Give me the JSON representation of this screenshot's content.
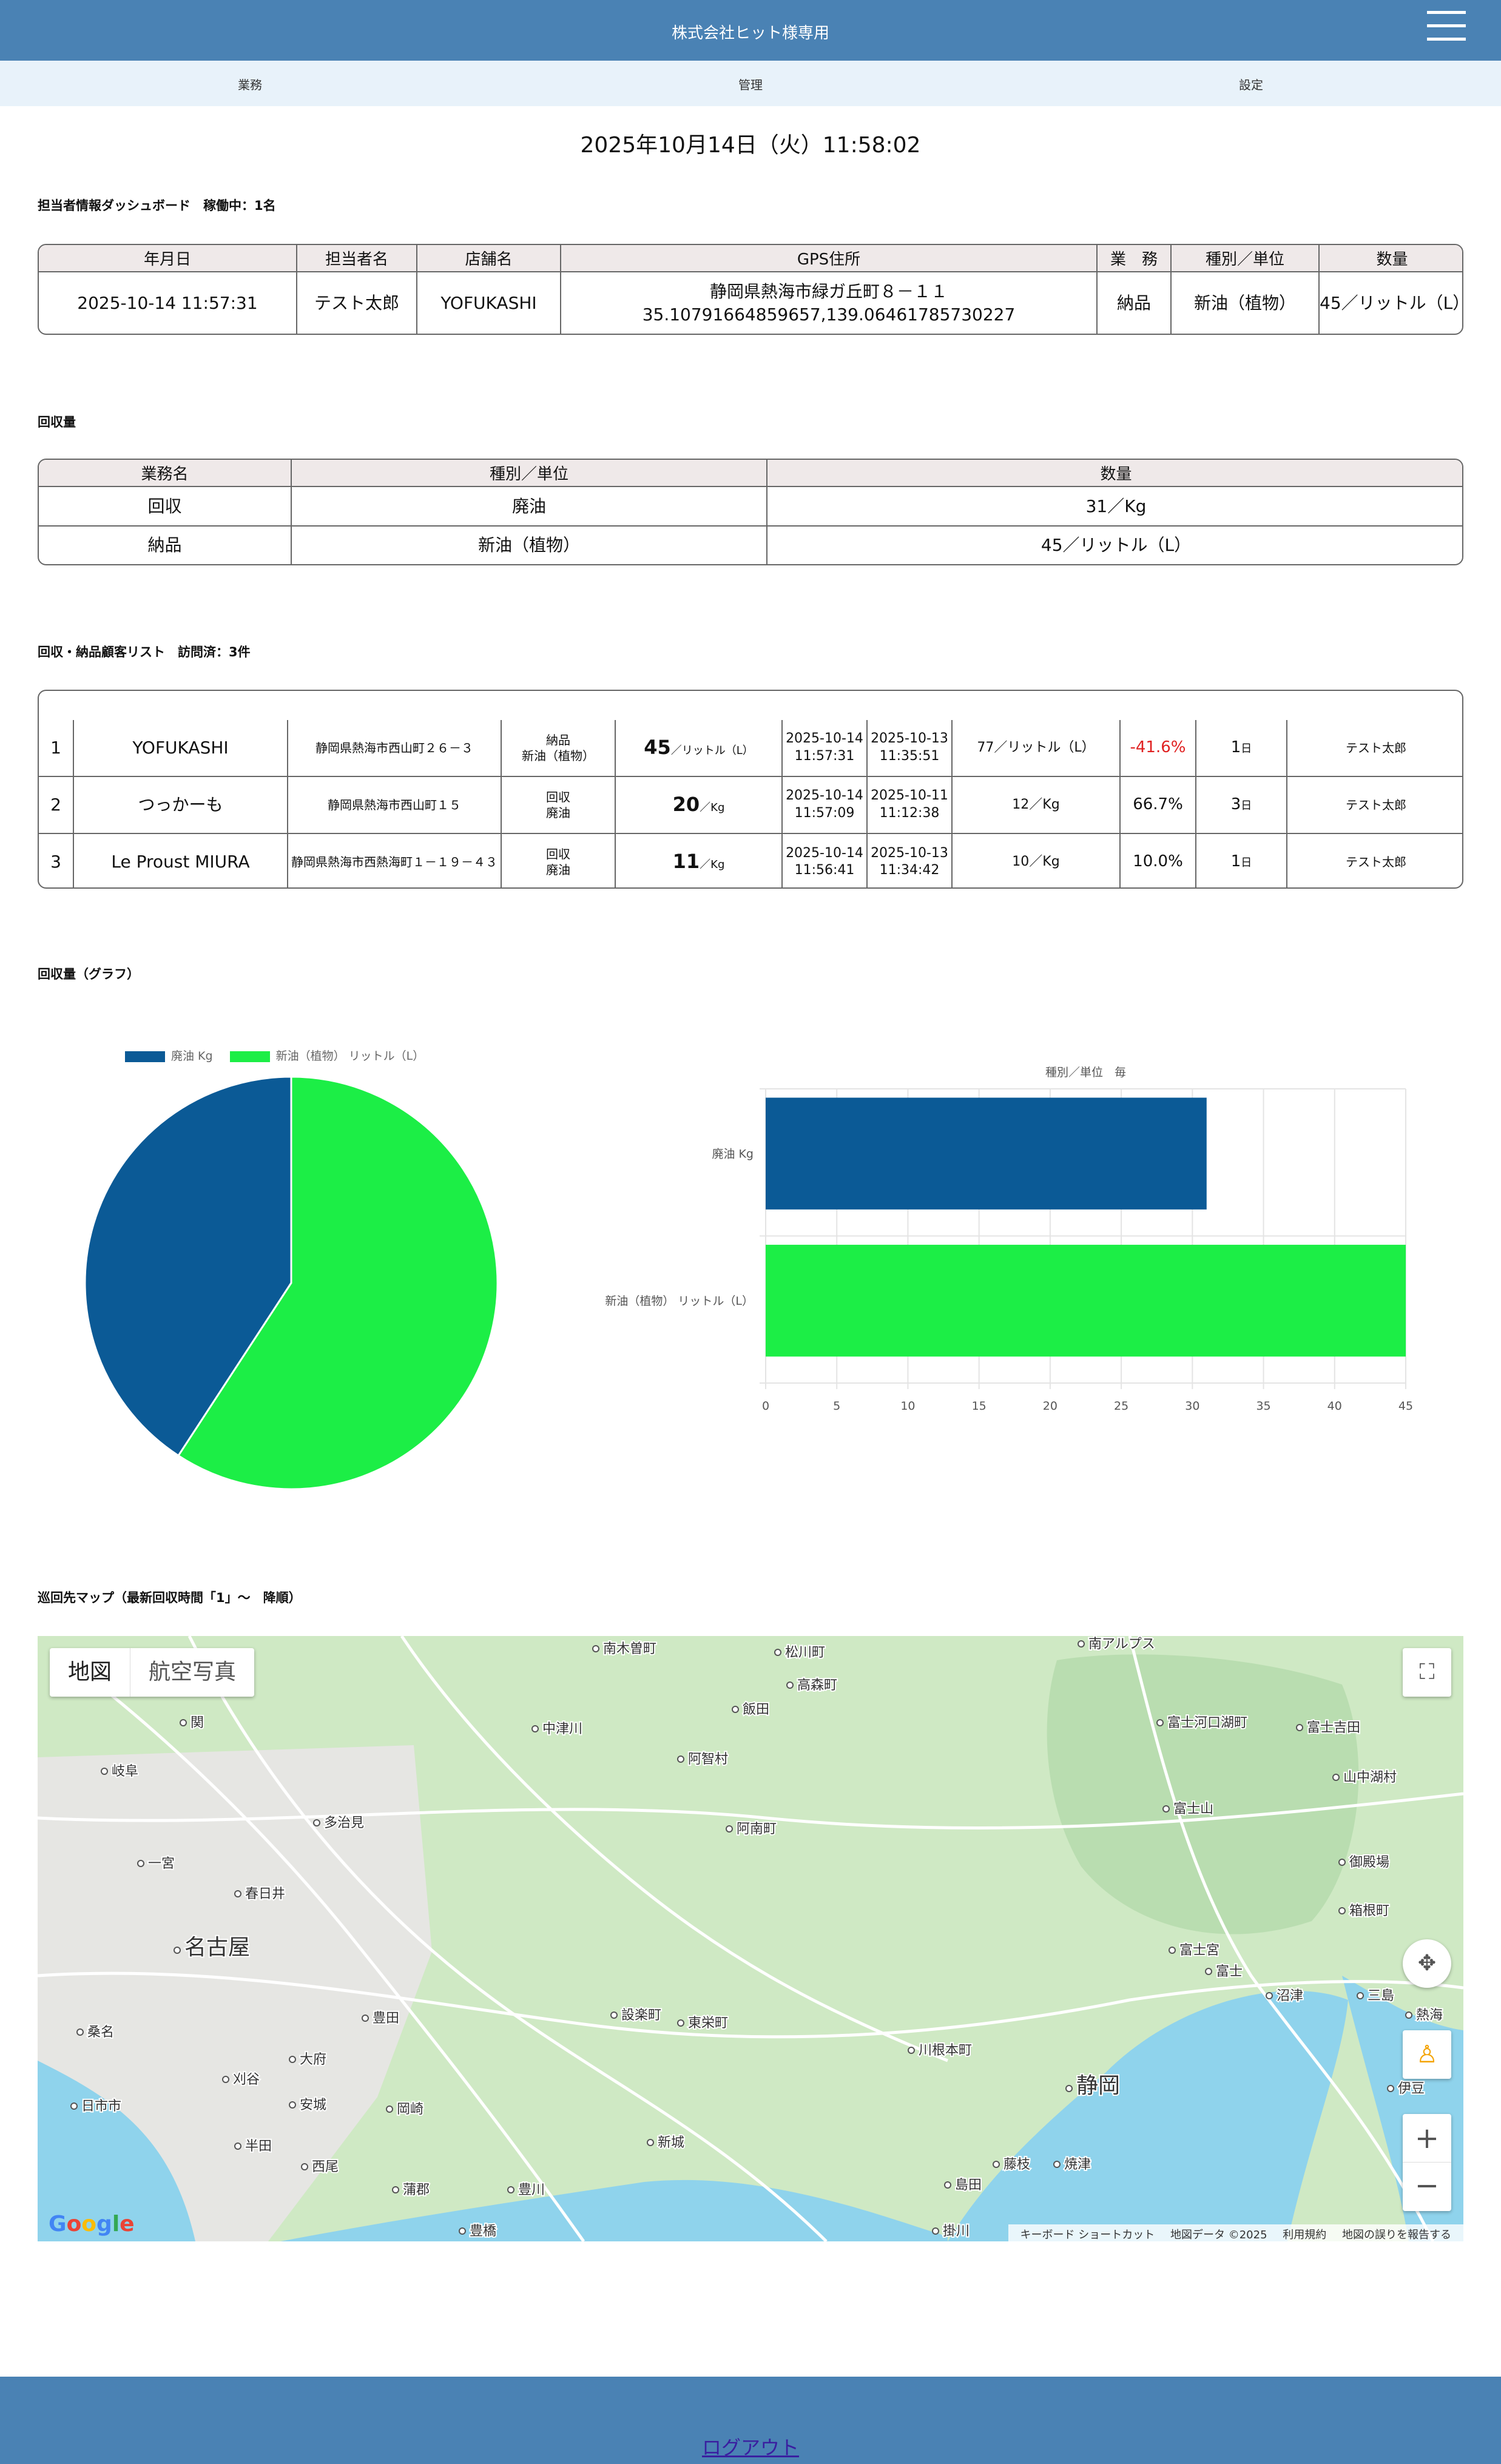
{
  "header": {
    "title": "株式会社ヒット様専用"
  },
  "nav": {
    "items": [
      "業務",
      "管理",
      "設定"
    ]
  },
  "datetime": "2025年10月14日（火）11:58:02",
  "dashboard": {
    "title": "担当者情報ダッシュボード　稼働中：1名",
    "headers": [
      "年月日",
      "担当者名",
      "店舗名",
      "GPS住所",
      "業　務",
      "種別／単位",
      "数量"
    ],
    "row": {
      "date": "2025-10-14 11:57:31",
      "staff": "テスト太郎",
      "store": "YOFUKASHI",
      "address": "静岡県熱海市緑ガ丘町８－１１",
      "coords": "35.10791664859657,139.06461785730227",
      "task": "納品",
      "kind": "新油（植物）",
      "qty": "45／リットル（L）"
    }
  },
  "collection": {
    "title": "回収量",
    "headers": [
      "業務名",
      "種別／単位",
      "数量"
    ],
    "rows": [
      {
        "task": "回収",
        "kind": "廃油",
        "qty": "31／Kg"
      },
      {
        "task": "納品",
        "kind": "新油（植物）",
        "qty": "45／リットル（L）"
      }
    ]
  },
  "customers": {
    "title": "回収・納品顧客リスト　訪問済：3件",
    "rows": [
      {
        "no": "1",
        "name": "YOFUKASHI",
        "address": "静岡県熱海市西山町２６－３",
        "task_line1": "納品",
        "task_line2": "新油（植物）",
        "qty_num": "45",
        "qty_unit": "／リットル（L）",
        "latest_date": "2025-10-14",
        "latest_time": "11:57:31",
        "prev_date": "2025-10-13",
        "prev_time": "11:35:51",
        "prev_qty": "77／リットル（L）",
        "change": "-41.6%",
        "days": "1",
        "days_unit": "日",
        "staff": "テスト太郎"
      },
      {
        "no": "2",
        "name": "つっかーも",
        "address": "静岡県熱海市西山町１５",
        "task_line1": "回収",
        "task_line2": "廃油",
        "qty_num": "20",
        "qty_unit": "／Kg",
        "latest_date": "2025-10-14",
        "latest_time": "11:57:09",
        "prev_date": "2025-10-11",
        "prev_time": "11:12:38",
        "prev_qty": "12／Kg",
        "change": "66.7%",
        "days": "3",
        "days_unit": "日",
        "staff": "テスト太郎"
      },
      {
        "no": "3",
        "name": "Le Proust MIURA",
        "address": "静岡県熱海市西熱海町１－１９－４３",
        "task_line1": "回収",
        "task_line2": "廃油",
        "qty_num": "11",
        "qty_unit": "／Kg",
        "latest_date": "2025-10-14",
        "latest_time": "11:56:41",
        "prev_date": "2025-10-13",
        "prev_time": "11:34:42",
        "prev_qty": "10／Kg",
        "change": "10.0%",
        "days": "1",
        "days_unit": "日",
        "staff": "テスト太郎"
      }
    ]
  },
  "graph": {
    "title": "回収量（グラフ）"
  },
  "chart_data": [
    {
      "type": "pie",
      "categories": [
        "廃油 Kg",
        "新油（植物） リットル（L）"
      ],
      "values": [
        31,
        45
      ],
      "colors": [
        "#0b5a96",
        "#1cee46"
      ],
      "legend": "top"
    },
    {
      "type": "bar",
      "orientation": "horizontal",
      "title": "種別／単位　毎",
      "categories": [
        "廃油 Kg",
        "新油（植物） リットル（L）"
      ],
      "values": [
        31,
        45
      ],
      "colors": [
        "#0b5a96",
        "#1cee46"
      ],
      "xlim": [
        0,
        45
      ],
      "xticks": [
        0,
        5,
        10,
        15,
        20,
        25,
        30,
        35,
        40,
        45
      ],
      "grid": true
    }
  ],
  "map": {
    "title": "巡回先マップ（最新回収時間「1」～　降順）",
    "toggle": [
      "地図",
      "航空写真"
    ],
    "footer": [
      "キーボード ショートカット",
      "地図データ ©2025",
      "利用規約",
      "地図の誤りを報告する"
    ],
    "logo": "Google",
    "places": [
      "南木曽町",
      "松川町",
      "南アルプス",
      "関",
      "高森町",
      "飯田",
      "富士河口湖町",
      "富士吉田",
      "中津川",
      "岐阜",
      "阿智村",
      "山中湖村",
      "富士山",
      "多治見",
      "阿南町",
      "一宮",
      "御殿場",
      "春日井",
      "箱根町",
      "名古屋",
      "富士宮",
      "富士",
      "沼津",
      "三島",
      "熱海",
      "豊田",
      "設楽町",
      "東栄町",
      "桑名",
      "大府",
      "刈谷",
      "川根本町",
      "静岡",
      "伊豆",
      "安城",
      "岡崎",
      "日市市",
      "半田",
      "新城",
      "藤枝",
      "焼津",
      "西尾",
      "蒲郡",
      "豊川",
      "島田",
      "豊橋",
      "掛川"
    ],
    "colors": {
      "land": "#cfe9c4",
      "water": "#8fd3ec",
      "urban": "#e6e6e3",
      "road": "#ffffff"
    }
  },
  "footer": {
    "logout": "ログアウト"
  }
}
